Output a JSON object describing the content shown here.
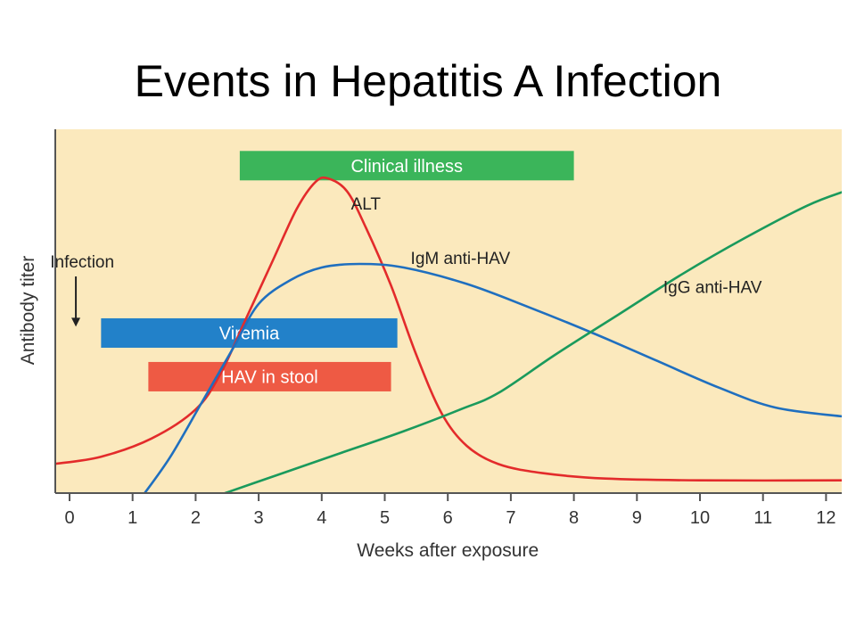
{
  "title": "Events in Hepatitis A Infection",
  "colors": {
    "background": "#fbe9bd",
    "alt": "#e32b2b",
    "igm": "#1f6fbf",
    "igg": "#1a9a5c",
    "clinical": "#3bb55a",
    "viremia": "#2281c9",
    "stool": "#ee5a44"
  },
  "chart_data": {
    "type": "line",
    "title": "Events in Hepatitis A Infection",
    "xlabel": "Weeks after exposure",
    "ylabel": "Antibody titer",
    "xlim": [
      -0.2,
      12.3
    ],
    "ylim": [
      0,
      100
    ],
    "x_ticks": [
      "0",
      "1",
      "2",
      "3",
      "4",
      "5",
      "6",
      "7",
      "8",
      "9",
      "10",
      "11",
      "12"
    ],
    "grid": false,
    "series": [
      {
        "name": "ALT",
        "color_key": "alt",
        "points": [
          [
            -0.25,
            8
          ],
          [
            0.5,
            10
          ],
          [
            1.3,
            15
          ],
          [
            2.0,
            23
          ],
          [
            2.4,
            33
          ],
          [
            2.8,
            48
          ],
          [
            3.2,
            63
          ],
          [
            3.6,
            78
          ],
          [
            3.9,
            85.5
          ],
          [
            4.1,
            86.5
          ],
          [
            4.4,
            83
          ],
          [
            4.7,
            73
          ],
          [
            5.1,
            57
          ],
          [
            5.5,
            38
          ],
          [
            5.9,
            22
          ],
          [
            6.3,
            13
          ],
          [
            6.8,
            8
          ],
          [
            7.5,
            5.5
          ],
          [
            8.5,
            4
          ],
          [
            10,
            3.5
          ],
          [
            12.3,
            3.5
          ]
        ]
      },
      {
        "name": "IgM anti-HAV",
        "color_key": "igm",
        "points": [
          [
            1.15,
            -1
          ],
          [
            1.6,
            10
          ],
          [
            2.1,
            25
          ],
          [
            2.6,
            40
          ],
          [
            3.0,
            52
          ],
          [
            3.5,
            58.5
          ],
          [
            4.0,
            62
          ],
          [
            4.6,
            63
          ],
          [
            5.3,
            62
          ],
          [
            6.3,
            57.5
          ],
          [
            7.3,
            51
          ],
          [
            8.3,
            44
          ],
          [
            9.3,
            36.5
          ],
          [
            10.3,
            29
          ],
          [
            11.2,
            23.5
          ],
          [
            12.3,
            21
          ]
        ]
      },
      {
        "name": "IgG anti-HAV",
        "color_key": "igg",
        "points": [
          [
            2.3,
            -1
          ],
          [
            3.3,
            5
          ],
          [
            4.3,
            11
          ],
          [
            5.3,
            17
          ],
          [
            6.2,
            23
          ],
          [
            6.8,
            27.5
          ],
          [
            7.7,
            38
          ],
          [
            8.7,
            49
          ],
          [
            9.7,
            60
          ],
          [
            10.7,
            70
          ],
          [
            11.7,
            79
          ],
          [
            12.3,
            83
          ]
        ]
      }
    ],
    "bars": [
      {
        "label": "Clinical illness",
        "start": 2.7,
        "end": 8.0,
        "level": 90,
        "color_key": "clinical"
      },
      {
        "label": "Viremia",
        "start": 0.5,
        "end": 5.2,
        "level": 44,
        "color_key": "viremia"
      },
      {
        "label": "HAV in stool",
        "start": 1.25,
        "end": 5.1,
        "level": 32,
        "color_key": "stool"
      }
    ],
    "annotations": [
      {
        "text": "Infection",
        "x": 0.2,
        "y": 62,
        "arrow_to": [
          0.1,
          46
        ]
      },
      {
        "text": "ALT",
        "x": 4.7,
        "y": 78
      },
      {
        "text": "IgM anti-HAV",
        "x": 6.2,
        "y": 63
      },
      {
        "text": "IgG anti-HAV",
        "x": 10.2,
        "y": 55
      }
    ]
  }
}
